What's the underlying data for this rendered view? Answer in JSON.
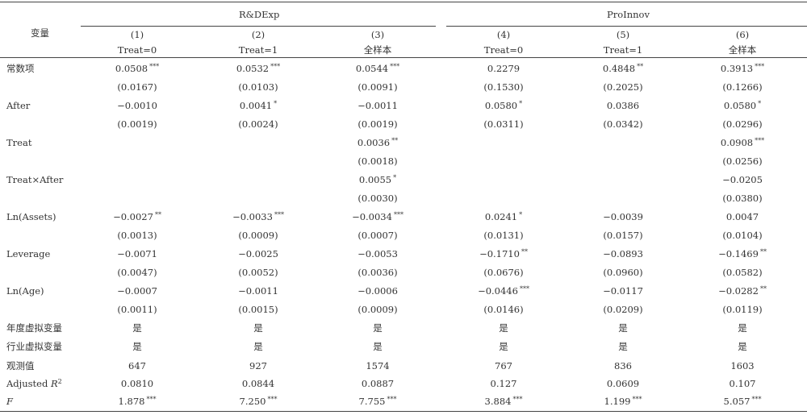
{
  "header": {
    "var_label": "变量",
    "group1": "R&DExp",
    "group2": "ProInnov",
    "col_nums": [
      "(1)",
      "(2)",
      "(3)",
      "(4)",
      "(5)",
      "(6)"
    ],
    "col_samples": [
      "Treat=0",
      "Treat=1",
      "全样本",
      "Treat=0",
      "Treat=1",
      "全样本"
    ]
  },
  "rows": [
    {
      "label": "常数项",
      "cells": [
        [
          "0.0508",
          "***"
        ],
        [
          "0.0532",
          "***"
        ],
        [
          "0.0544",
          "***"
        ],
        [
          "0.2279",
          ""
        ],
        [
          "0.4848",
          "**"
        ],
        [
          "0.3913",
          "***"
        ]
      ]
    },
    {
      "label": "",
      "cells": [
        [
          "(0.0167)",
          ""
        ],
        [
          "(0.0103)",
          ""
        ],
        [
          "(0.0091)",
          ""
        ],
        [
          "(0.1530)",
          ""
        ],
        [
          "(0.2025)",
          ""
        ],
        [
          "(0.1266)",
          ""
        ]
      ]
    },
    {
      "label": "After",
      "cells": [
        [
          "−0.0010",
          ""
        ],
        [
          "0.0041",
          "*"
        ],
        [
          "−0.0011",
          ""
        ],
        [
          "0.0580",
          "*"
        ],
        [
          "0.0386",
          ""
        ],
        [
          "0.0580",
          "*"
        ]
      ]
    },
    {
      "label": "",
      "cells": [
        [
          "(0.0019)",
          ""
        ],
        [
          "(0.0024)",
          ""
        ],
        [
          "(0.0019)",
          ""
        ],
        [
          "(0.0311)",
          ""
        ],
        [
          "(0.0342)",
          ""
        ],
        [
          "(0.0296)",
          ""
        ]
      ]
    },
    {
      "label": "Treat",
      "cells": [
        [
          "",
          ""
        ],
        [
          "",
          ""
        ],
        [
          "0.0036",
          "**"
        ],
        [
          "",
          ""
        ],
        [
          "",
          ""
        ],
        [
          "0.0908",
          "***"
        ]
      ]
    },
    {
      "label": "",
      "cells": [
        [
          "",
          ""
        ],
        [
          "",
          ""
        ],
        [
          "(0.0018)",
          ""
        ],
        [
          "",
          ""
        ],
        [
          "",
          ""
        ],
        [
          "(0.0256)",
          ""
        ]
      ]
    },
    {
      "label": "Treat×After",
      "cells": [
        [
          "",
          ""
        ],
        [
          "",
          ""
        ],
        [
          "0.0055",
          "*"
        ],
        [
          "",
          ""
        ],
        [
          "",
          ""
        ],
        [
          "−0.0205",
          ""
        ]
      ]
    },
    {
      "label": "",
      "cells": [
        [
          "",
          ""
        ],
        [
          "",
          ""
        ],
        [
          "(0.0030)",
          ""
        ],
        [
          "",
          ""
        ],
        [
          "",
          ""
        ],
        [
          "(0.0380)",
          ""
        ]
      ]
    },
    {
      "label": "Ln(Assets)",
      "cells": [
        [
          "−0.0027",
          "**"
        ],
        [
          "−0.0033",
          "***"
        ],
        [
          "−0.0034",
          "***"
        ],
        [
          "0.0241",
          "*"
        ],
        [
          "−0.0039",
          ""
        ],
        [
          "0.0047",
          ""
        ]
      ]
    },
    {
      "label": "",
      "cells": [
        [
          "(0.0013)",
          ""
        ],
        [
          "(0.0009)",
          ""
        ],
        [
          "(0.0007)",
          ""
        ],
        [
          "(0.0131)",
          ""
        ],
        [
          "(0.0157)",
          ""
        ],
        [
          "(0.0104)",
          ""
        ]
      ]
    },
    {
      "label": "Leverage",
      "cells": [
        [
          "−0.0071",
          ""
        ],
        [
          "−0.0025",
          ""
        ],
        [
          "−0.0053",
          ""
        ],
        [
          "−0.1710",
          "**"
        ],
        [
          "−0.0893",
          ""
        ],
        [
          "−0.1469",
          "**"
        ]
      ]
    },
    {
      "label": "",
      "cells": [
        [
          "(0.0047)",
          ""
        ],
        [
          "(0.0052)",
          ""
        ],
        [
          "(0.0036)",
          ""
        ],
        [
          "(0.0676)",
          ""
        ],
        [
          "(0.0960)",
          ""
        ],
        [
          "(0.0582)",
          ""
        ]
      ]
    },
    {
      "label": "Ln(Age)",
      "cells": [
        [
          "−0.0007",
          ""
        ],
        [
          "−0.0011",
          ""
        ],
        [
          "−0.0006",
          ""
        ],
        [
          "−0.0446",
          "***"
        ],
        [
          "−0.0117",
          ""
        ],
        [
          "−0.0282",
          "**"
        ]
      ]
    },
    {
      "label": "",
      "cells": [
        [
          "(0.0011)",
          ""
        ],
        [
          "(0.0015)",
          ""
        ],
        [
          "(0.0009)",
          ""
        ],
        [
          "(0.0146)",
          ""
        ],
        [
          "(0.0209)",
          ""
        ],
        [
          "(0.0119)",
          ""
        ]
      ]
    },
    {
      "label": "年度虚拟变量",
      "cells": [
        [
          "是",
          ""
        ],
        [
          "是",
          ""
        ],
        [
          "是",
          ""
        ],
        [
          "是",
          ""
        ],
        [
          "是",
          ""
        ],
        [
          "是",
          ""
        ]
      ]
    },
    {
      "label": "行业虚拟变量",
      "cells": [
        [
          "是",
          ""
        ],
        [
          "是",
          ""
        ],
        [
          "是",
          ""
        ],
        [
          "是",
          ""
        ],
        [
          "是",
          ""
        ],
        [
          "是",
          ""
        ]
      ]
    },
    {
      "label": "观测值",
      "cells": [
        [
          "647",
          ""
        ],
        [
          "927",
          ""
        ],
        [
          "1574",
          ""
        ],
        [
          "767",
          ""
        ],
        [
          "836",
          ""
        ],
        [
          "1603",
          ""
        ]
      ]
    },
    {
      "label": "Adjusted R²",
      "cells": [
        [
          "0.0810",
          ""
        ],
        [
          "0.0844",
          ""
        ],
        [
          "0.0887",
          ""
        ],
        [
          "0.127",
          ""
        ],
        [
          "0.0609",
          ""
        ],
        [
          "0.107",
          ""
        ]
      ]
    },
    {
      "label": "F",
      "italic": true,
      "cells": [
        [
          "1.878",
          "***"
        ],
        [
          "7.250",
          "***"
        ],
        [
          "7.755",
          "***"
        ],
        [
          "3.884",
          "***"
        ],
        [
          "1.199",
          "***"
        ],
        [
          "5.057",
          "***"
        ]
      ]
    }
  ]
}
